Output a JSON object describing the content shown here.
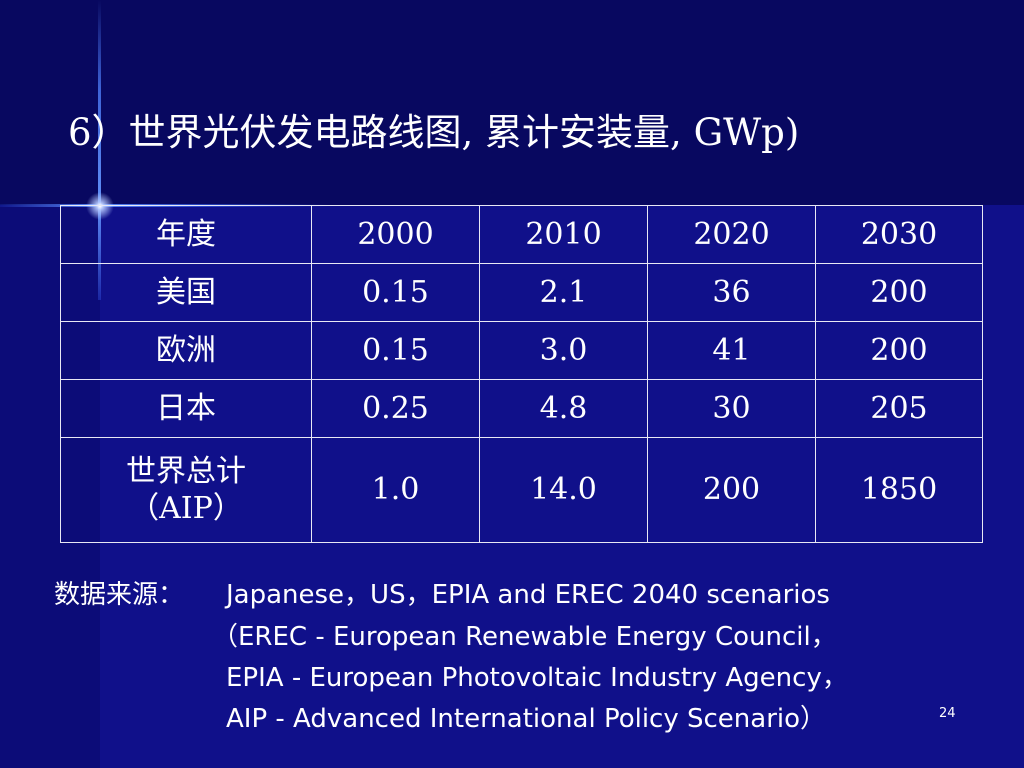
{
  "slide": {
    "title": "6）世界光伏发电路线图, 累计安装量, GWp)",
    "page_number": "24",
    "highlight_color": "#ee66ee",
    "background_color": "#10108a"
  },
  "table": {
    "header": [
      "年度",
      "2000",
      "2010",
      "2020",
      "2030"
    ],
    "rows": [
      {
        "region": "美国",
        "values": [
          "0.15",
          "2.1",
          "36",
          "200"
        ]
      },
      {
        "region": "欧洲",
        "values": [
          "0.15",
          "3.0",
          "41",
          "200"
        ]
      },
      {
        "region": "日本",
        "values": [
          "0.25",
          "4.8",
          "30",
          "205"
        ]
      },
      {
        "region": "世界总计",
        "region_sub": "（AIP）",
        "values": [
          "1.0",
          "14.0",
          "200",
          "1850"
        ]
      }
    ]
  },
  "source": {
    "label": "数据来源：",
    "lines": [
      "Japanese，US，EPIA and EREC 2040 scenarios",
      "（EREC - European Renewable Energy Council，",
      "EPIA - European Photovoltaic Industry Agency，",
      "AIP - Advanced International Policy Scenario）"
    ]
  }
}
